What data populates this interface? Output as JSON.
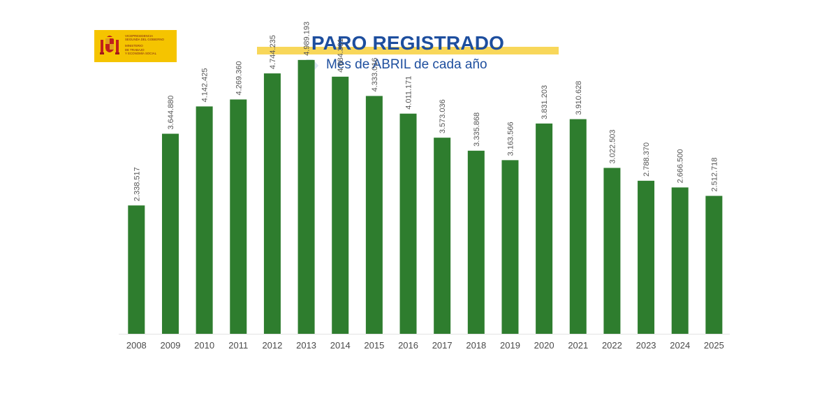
{
  "header": {
    "title": "PARO REGISTRADO",
    "subtitle": "Mes de ABRIL de cada año",
    "logo": {
      "lines_top": [
        "VICEPRESIDENCIA",
        "SEGUNDA DEL GOBIERNO"
      ],
      "lines_bottom": [
        "MINISTERIO",
        "DE TRABAJO",
        "Y ECONOMÍA SOCIAL"
      ],
      "background": "#f5c400"
    }
  },
  "colors": {
    "bar": "#2e7d2e",
    "title": "#1d4e9e",
    "title_highlight": "#f8d75a"
  },
  "chart_data": {
    "type": "bar",
    "categories": [
      "2008",
      "2009",
      "2010",
      "2011",
      "2012",
      "2013",
      "2014",
      "2015",
      "2016",
      "2017",
      "2018",
      "2019",
      "2020",
      "2021",
      "2022",
      "2023",
      "2024",
      "2025"
    ],
    "values": [
      2338517,
      3644880,
      4142425,
      4269360,
      4744235,
      4989193,
      4684301,
      4333016,
      4011171,
      3573036,
      3335868,
      3163566,
      3831203,
      3910628,
      3022503,
      2788370,
      2666500,
      2512718
    ],
    "value_labels": [
      "2.338.517",
      "3.644.880",
      "4.142.425",
      "4.269.360",
      "4.744.235",
      "4.989.193",
      "4.684.301",
      "4.333.016",
      "4.011.171",
      "3.573.036",
      "3.335.868",
      "3.163.566",
      "3.831.203",
      "3.910.628",
      "3.022.503",
      "2.788.370",
      "2.666.500",
      "2.512.718"
    ],
    "title": "PARO REGISTRADO",
    "subtitle": "Mes de ABRIL de cada año",
    "xlabel": "",
    "ylabel": "",
    "ylim": [
      0,
      5000000
    ],
    "grid": false,
    "legend": "none",
    "data_label_rotation": "vertical"
  }
}
